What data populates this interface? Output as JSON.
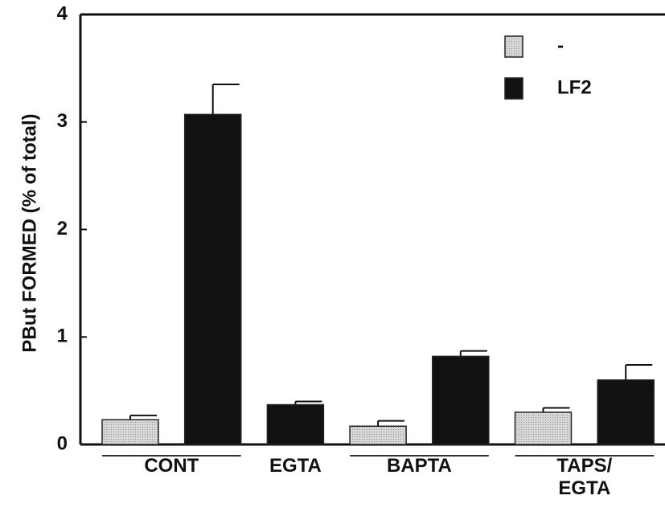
{
  "chart_data": {
    "type": "bar",
    "y_label": "PBut FORMED (% of total)",
    "categories": [
      "CONT",
      "EGTA",
      "BAPTA",
      "TAPS/\nEGTA"
    ],
    "series": [
      {
        "name": "-",
        "color": "#c4c4c4",
        "values": [
          0.23,
          null,
          0.17,
          0.3
        ],
        "errors": [
          0.04,
          null,
          0.05,
          0.04
        ]
      },
      {
        "name": "LF2",
        "color": "#111111",
        "values": [
          3.07,
          0.37,
          0.82,
          0.6
        ],
        "errors": [
          0.28,
          0.03,
          0.05,
          0.14
        ]
      }
    ],
    "ylim": [
      0,
      4
    ],
    "yticks": [
      0,
      1,
      2,
      3,
      4
    ],
    "legend": "upper right"
  }
}
